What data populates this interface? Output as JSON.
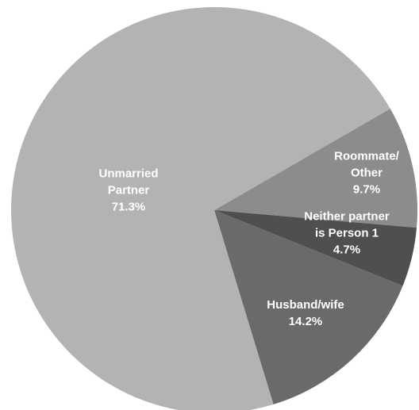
{
  "chart_data": {
    "type": "pie",
    "categories": [
      "Roommate/ Other",
      "Neither partner is Person 1",
      "Husband/wife",
      "Unmarried Partner"
    ],
    "values": [
      9.7,
      4.7,
      14.2,
      71.3
    ],
    "value_labels": [
      "9.7%",
      "4.7%",
      "14.2%",
      "71.3%"
    ],
    "colors": [
      "#8c8c8c",
      "#4f4f4f",
      "#6a6a6a",
      "#b3b3b3"
    ]
  }
}
